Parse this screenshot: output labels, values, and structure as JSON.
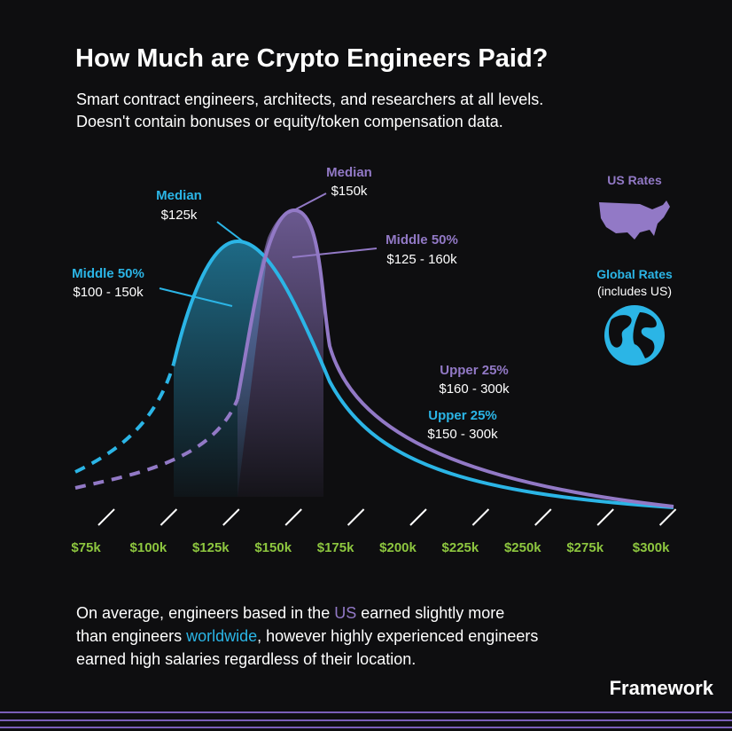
{
  "title": "How Much are Crypto Engineers Paid?",
  "subtitle": [
    "Smart contract engineers, architects, and researchers at all levels.",
    "Doesn't contain bonuses or equity/token compensation data."
  ],
  "global_annotations": [
    {
      "label": "Median",
      "range": "$125k"
    },
    {
      "label": "Middle 50%",
      "range": "$100 - 150k"
    },
    {
      "label": "Upper 25%",
      "range": "$150 - 300k"
    }
  ],
  "us_annotations": [
    {
      "label": "Median",
      "range": "$150k"
    },
    {
      "label": "Middle 50%",
      "range": "$125 - 160k"
    },
    {
      "label": "Upper 25%",
      "range": "$160 - 300k"
    }
  ],
  "legend": {
    "us": "US Rates",
    "global": "Global Rates",
    "global_note": "(includes US)"
  },
  "x_axis": [
    "$75k",
    "$100k",
    "$125k",
    "$150k",
    "$175k",
    "$200k",
    "$225k",
    "$250k",
    "$275k",
    "$300k"
  ],
  "footer": [
    [
      "On average, engineers based in the ",
      "US",
      " earned slightly more"
    ],
    [
      "than engineers ",
      "worldwide",
      ", however highly experienced engineers"
    ],
    [
      "earned high salaries regardless of their location."
    ]
  ],
  "brand": "Framework"
}
